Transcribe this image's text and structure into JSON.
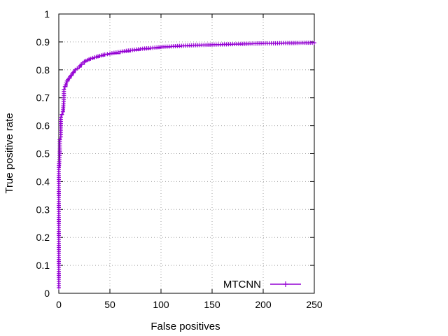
{
  "chart_data": {
    "type": "line",
    "title": "",
    "xlabel": "False positives",
    "ylabel": "True positive rate",
    "xlim": [
      0,
      250
    ],
    "ylim": [
      0,
      1
    ],
    "x_ticks": [
      0,
      50,
      100,
      150,
      200,
      250
    ],
    "y_ticks": [
      0,
      0.1,
      0.2,
      0.3,
      0.4,
      0.5,
      0.6,
      0.7,
      0.8,
      0.9,
      1
    ],
    "grid": true,
    "legend_position": "bottom-right",
    "marker": "plus",
    "series": [
      {
        "name": "MTCNN",
        "color": "#9400d3",
        "x": [
          0,
          0,
          0,
          0,
          0,
          0,
          0,
          0,
          0,
          0,
          1,
          1,
          1,
          2,
          2,
          2,
          3,
          4,
          5,
          5,
          6,
          8,
          10,
          12,
          14,
          16,
          18,
          20,
          22,
          25,
          28,
          31,
          35,
          40,
          45,
          50,
          60,
          70,
          80,
          90,
          100,
          110,
          120,
          130,
          140,
          150,
          160,
          170,
          180,
          190,
          200,
          210,
          220,
          230,
          240,
          250
        ],
        "y": [
          0.02,
          0.05,
          0.1,
          0.15,
          0.2,
          0.25,
          0.3,
          0.35,
          0.4,
          0.45,
          0.5,
          0.52,
          0.55,
          0.56,
          0.6,
          0.63,
          0.64,
          0.65,
          0.7,
          0.73,
          0.74,
          0.76,
          0.77,
          0.78,
          0.79,
          0.8,
          0.805,
          0.81,
          0.82,
          0.83,
          0.835,
          0.84,
          0.845,
          0.85,
          0.855,
          0.858,
          0.865,
          0.87,
          0.875,
          0.878,
          0.882,
          0.884,
          0.886,
          0.888,
          0.889,
          0.89,
          0.891,
          0.892,
          0.893,
          0.894,
          0.895,
          0.895,
          0.896,
          0.896,
          0.897,
          0.897
        ]
      }
    ]
  }
}
